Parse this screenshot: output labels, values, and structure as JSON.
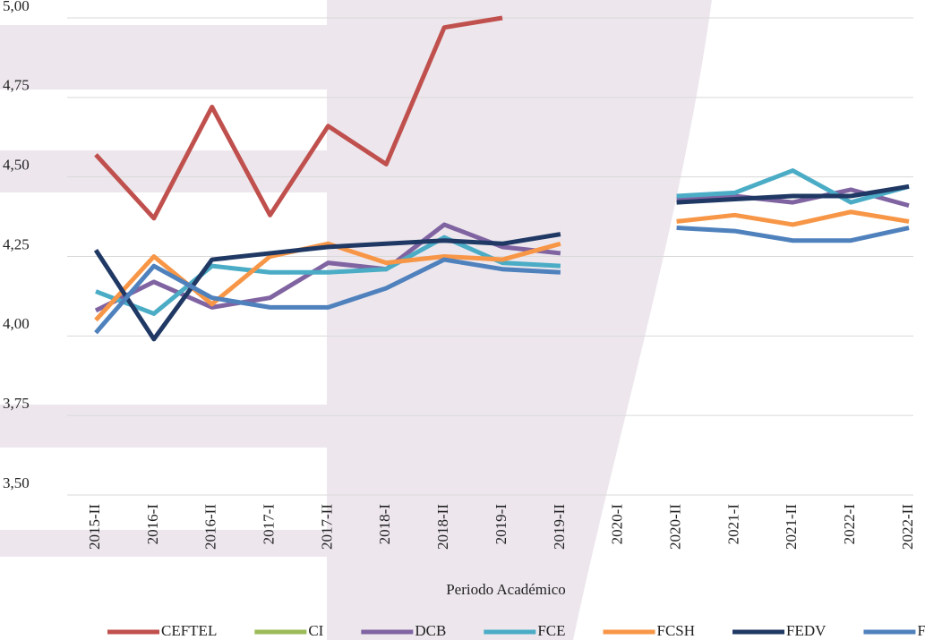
{
  "chart_data": {
    "type": "line",
    "x_label": "Periodo Académico",
    "categories": [
      "2015-II",
      "2016-I",
      "2016-II",
      "2017-I",
      "2017-II",
      "2018-I",
      "2018-II",
      "2019-I",
      "2019-II",
      "2020-I",
      "2020-II",
      "2021-I",
      "2021-II",
      "2022-I",
      "2022-II"
    ],
    "ylim": [
      3.5,
      5.0
    ],
    "yticks": [
      {
        "value": 3.5,
        "label": "3,50"
      },
      {
        "value": 3.75,
        "label": "3,75"
      },
      {
        "value": 4.0,
        "label": "4,00"
      },
      {
        "value": 4.25,
        "label": "4,25"
      },
      {
        "value": 4.5,
        "label": "4,50"
      },
      {
        "value": 4.75,
        "label": "4,75"
      },
      {
        "value": 5.0,
        "label": "5,00"
      }
    ],
    "grid": true,
    "legend": "bottom",
    "series": [
      {
        "name": "CEFTEL",
        "color": "#c0504d",
        "values": [
          4.57,
          4.37,
          4.72,
          4.38,
          4.66,
          4.54,
          4.97,
          5.0,
          null,
          null,
          null,
          null,
          null,
          null,
          null
        ]
      },
      {
        "name": "CI",
        "color": "#9bbb59",
        "values": [
          null,
          null,
          null,
          null,
          null,
          null,
          null,
          null,
          null,
          null,
          null,
          null,
          null,
          null,
          null
        ]
      },
      {
        "name": "DCB",
        "color": "#8064a2",
        "values": [
          4.08,
          4.17,
          4.09,
          4.12,
          4.23,
          4.21,
          4.35,
          4.28,
          4.26,
          null,
          4.43,
          4.44,
          4.42,
          4.46,
          4.41
        ]
      },
      {
        "name": "FCE",
        "color": "#4bacc6",
        "values": [
          4.14,
          4.07,
          4.22,
          4.2,
          4.2,
          4.21,
          4.31,
          4.23,
          4.22,
          null,
          4.44,
          4.45,
          4.52,
          4.42,
          4.47
        ]
      },
      {
        "name": "FCSH",
        "color": "#f79646",
        "values": [
          4.05,
          4.25,
          4.1,
          4.25,
          4.29,
          4.23,
          4.25,
          4.24,
          4.29,
          null,
          4.36,
          4.38,
          4.35,
          4.39,
          4.36
        ]
      },
      {
        "name": "FEDV",
        "color": "#1f3864",
        "values": [
          4.27,
          3.99,
          4.24,
          4.26,
          4.28,
          4.29,
          4.3,
          4.29,
          4.32,
          null,
          4.42,
          4.43,
          4.44,
          4.44,
          4.47
        ]
      },
      {
        "name": "FI",
        "color": "#4f81bd",
        "values": [
          4.01,
          4.22,
          4.12,
          4.09,
          4.09,
          4.15,
          4.24,
          4.21,
          4.2,
          null,
          4.34,
          4.33,
          4.3,
          4.3,
          4.34
        ]
      }
    ]
  }
}
